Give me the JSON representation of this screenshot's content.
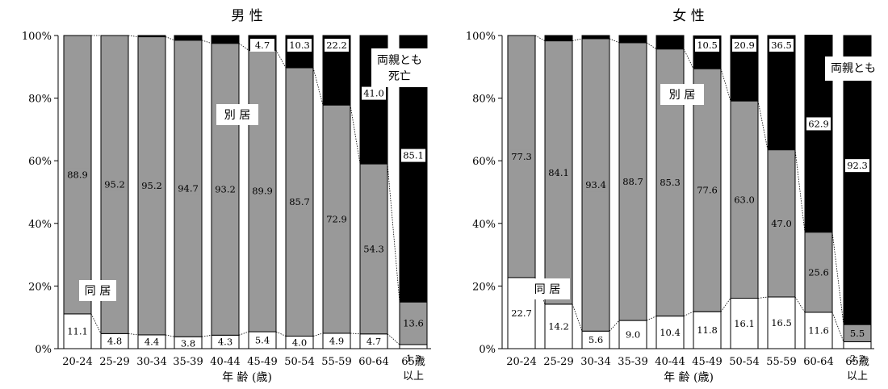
{
  "chart_data": [
    {
      "type": "bar",
      "stacked": true,
      "title": "男 性",
      "xlabel": "年 齢 (歳)",
      "ylim": [
        0,
        100
      ],
      "yticks": [
        "0%",
        "20%",
        "40%",
        "60%",
        "80%",
        "100%"
      ],
      "categories": [
        "20-24",
        "25-29",
        "30-34",
        "35-39",
        "40-44",
        "45-49",
        "50-54",
        "55-59",
        "60-64",
        "65歳以上"
      ],
      "series": [
        {
          "name": "同 居",
          "color": "#ffffff",
          "values": [
            11.1,
            4.8,
            4.4,
            3.8,
            4.3,
            5.4,
            4.0,
            4.9,
            4.7,
            1.3
          ]
        },
        {
          "name": "別 居",
          "color": "#999999",
          "values": [
            88.9,
            95.2,
            95.2,
            94.7,
            93.2,
            89.9,
            85.7,
            72.9,
            54.3,
            13.6
          ]
        },
        {
          "name": "両親とも死亡",
          "color": "#000000",
          "values": [
            0,
            0,
            0.4,
            1.5,
            2.5,
            4.7,
            10.3,
            22.2,
            41.0,
            85.1
          ]
        }
      ],
      "labels": {
        "same": [
          "11.1",
          "4.8",
          "4.4",
          "3.8",
          "4.3",
          "5.4",
          "4.0",
          "4.9",
          "4.7",
          "1.3"
        ],
        "sep": [
          "88.9",
          "95.2",
          "95.2",
          "94.7",
          "93.2",
          "89.9",
          "85.7",
          "72.9",
          "54.3",
          "13.6"
        ],
        "dead": [
          "",
          "",
          "",
          "",
          "",
          "4.7",
          "10.3",
          "22.2",
          "41.0",
          "85.1"
        ]
      },
      "region_labels": {
        "same": "同 居",
        "sep": "別 居",
        "dead_line1": "両親とも",
        "dead_line2": "死亡"
      }
    },
    {
      "type": "bar",
      "stacked": true,
      "title": "女 性",
      "xlabel": "年 齢 (歳)",
      "ylim": [
        0,
        100
      ],
      "yticks": [
        "0%",
        "20%",
        "40%",
        "60%",
        "80%",
        "100%"
      ],
      "categories": [
        "20-24",
        "25-29",
        "30-34",
        "35-39",
        "40-44",
        "45-49",
        "50-54",
        "55-59",
        "60-64",
        "65歳以上"
      ],
      "series": [
        {
          "name": "同 居",
          "color": "#ffffff",
          "values": [
            22.7,
            14.2,
            5.6,
            9.0,
            10.4,
            11.8,
            16.1,
            16.5,
            11.6,
            2.2
          ]
        },
        {
          "name": "別 居",
          "color": "#999999",
          "values": [
            77.3,
            84.1,
            93.4,
            88.7,
            85.3,
            77.6,
            63.0,
            47.0,
            25.6,
            5.5
          ]
        },
        {
          "name": "両親とも死亡",
          "color": "#000000",
          "values": [
            0,
            1.7,
            1.0,
            2.3,
            4.3,
            10.5,
            20.9,
            36.5,
            62.9,
            92.3
          ]
        }
      ],
      "labels": {
        "same": [
          "22.7",
          "14.2",
          "5.6",
          "9.0",
          "10.4",
          "11.8",
          "16.1",
          "16.5",
          "11.6",
          "2.2"
        ],
        "sep": [
          "77.3",
          "84.1",
          "93.4",
          "88.7",
          "85.3",
          "77.6",
          "63.0",
          "47.0",
          "25.6",
          "5.5"
        ],
        "dead": [
          "",
          "",
          "",
          "",
          "",
          "10.5",
          "20.9",
          "36.5",
          "62.9",
          "92.3"
        ]
      },
      "region_labels": {
        "same": "同 居",
        "sep": "別 居",
        "dead_line1": "両親とも",
        "dead_line2": ""
      }
    }
  ]
}
